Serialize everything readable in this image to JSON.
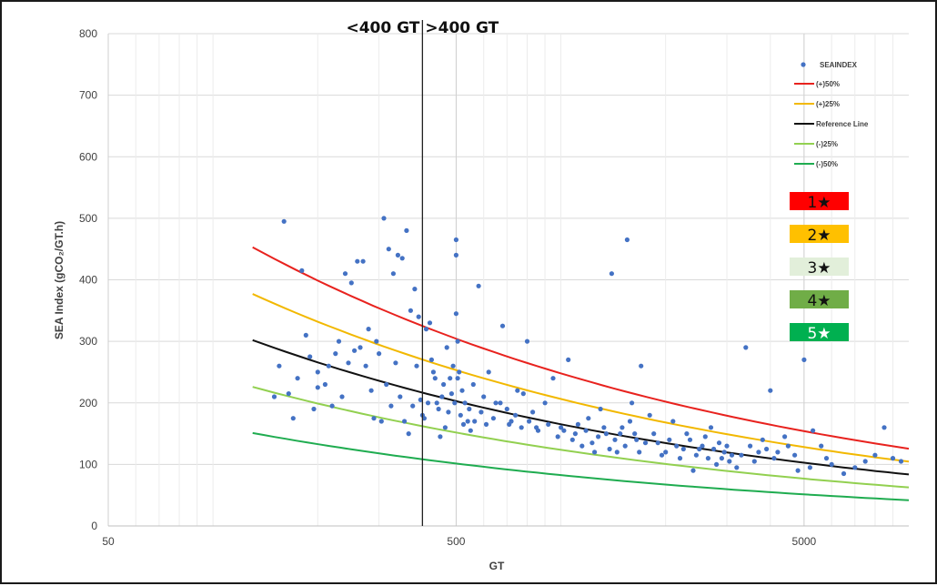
{
  "chart_data": {
    "type": "scatter",
    "title": "",
    "xlabel": "GT",
    "ylabel": "SEA Index (gCO₂/GT.h)",
    "x_scale": "log",
    "xlim": [
      50,
      10000
    ],
    "ylim": [
      0,
      800
    ],
    "x_ticks": [
      50,
      500,
      5000
    ],
    "x_tick_labels": [
      "50",
      "500",
      "5000"
    ],
    "y_ticks": [
      0,
      100,
      200,
      300,
      400,
      500,
      600,
      700,
      800
    ],
    "y_tick_labels": [
      "0",
      "100",
      "200",
      "300",
      "400",
      "500",
      "600",
      "700",
      "800"
    ],
    "grid": true,
    "legend_position": "top-right",
    "threshold_line": {
      "x": 400
    },
    "annotations": [
      "<400 GT",
      ">400 GT"
    ],
    "scatter_series": {
      "name": "SEAINDEX",
      "color": "#4472c4",
      "points": [
        [
          160,
          495
        ],
        [
          150,
          210
        ],
        [
          155,
          260
        ],
        [
          165,
          215
        ],
        [
          170,
          175
        ],
        [
          175,
          240
        ],
        [
          180,
          415
        ],
        [
          185,
          310
        ],
        [
          190,
          275
        ],
        [
          195,
          190
        ],
        [
          200,
          250
        ],
        [
          210,
          230
        ],
        [
          220,
          195
        ],
        [
          230,
          300
        ],
        [
          240,
          410
        ],
        [
          250,
          395
        ],
        [
          255,
          285
        ],
        [
          260,
          430
        ],
        [
          270,
          430
        ],
        [
          280,
          320
        ],
        [
          290,
          175
        ],
        [
          300,
          280
        ],
        [
          305,
          170
        ],
        [
          310,
          500
        ],
        [
          320,
          450
        ],
        [
          330,
          410
        ],
        [
          340,
          440
        ],
        [
          350,
          435
        ],
        [
          360,
          480
        ],
        [
          370,
          350
        ],
        [
          380,
          385
        ],
        [
          390,
          340
        ],
        [
          400,
          180
        ],
        [
          410,
          320
        ],
        [
          420,
          330
        ],
        [
          430,
          250
        ],
        [
          440,
          200
        ],
        [
          450,
          145
        ],
        [
          460,
          230
        ],
        [
          470,
          290
        ],
        [
          480,
          240
        ],
        [
          490,
          260
        ],
        [
          500,
          465
        ],
        [
          500,
          440
        ],
        [
          500,
          345
        ],
        [
          505,
          300
        ],
        [
          510,
          250
        ],
        [
          520,
          220
        ],
        [
          530,
          200
        ],
        [
          540,
          170
        ],
        [
          550,
          155
        ],
        [
          560,
          230
        ],
        [
          580,
          390
        ],
        [
          600,
          210
        ],
        [
          620,
          250
        ],
        [
          650,
          200
        ],
        [
          680,
          325
        ],
        [
          700,
          190
        ],
        [
          720,
          170
        ],
        [
          750,
          220
        ],
        [
          780,
          215
        ],
        [
          800,
          300
        ],
        [
          830,
          185
        ],
        [
          850,
          160
        ],
        [
          900,
          200
        ],
        [
          950,
          240
        ],
        [
          1000,
          160
        ],
        [
          1050,
          270
        ],
        [
          1100,
          150
        ],
        [
          1150,
          130
        ],
        [
          1200,
          175
        ],
        [
          1250,
          120
        ],
        [
          1300,
          190
        ],
        [
          1350,
          150
        ],
        [
          1400,
          410
        ],
        [
          1450,
          120
        ],
        [
          1500,
          160
        ],
        [
          1550,
          465
        ],
        [
          1600,
          200
        ],
        [
          1650,
          140
        ],
        [
          1700,
          260
        ],
        [
          1800,
          180
        ],
        [
          1900,
          135
        ],
        [
          2000,
          120
        ],
        [
          2100,
          170
        ],
        [
          2200,
          110
        ],
        [
          2300,
          150
        ],
        [
          2400,
          90
        ],
        [
          2500,
          125
        ],
        [
          2600,
          145
        ],
        [
          2700,
          160
        ],
        [
          2800,
          100
        ],
        [
          2900,
          110
        ],
        [
          3000,
          130
        ],
        [
          3100,
          115
        ],
        [
          3200,
          95
        ],
        [
          3400,
          290
        ],
        [
          3600,
          105
        ],
        [
          3800,
          140
        ],
        [
          4000,
          220
        ],
        [
          4200,
          120
        ],
        [
          4500,
          130
        ],
        [
          4800,
          90
        ],
        [
          5000,
          270
        ],
        [
          5300,
          155
        ],
        [
          5600,
          130
        ],
        [
          6000,
          100
        ],
        [
          6500,
          85
        ],
        [
          7000,
          95
        ],
        [
          7500,
          105
        ],
        [
          8000,
          115
        ],
        [
          8500,
          160
        ],
        [
          9000,
          110
        ],
        [
          9500,
          105
        ],
        [
          200,
          225
        ],
        [
          215,
          260
        ],
        [
          225,
          280
        ],
        [
          235,
          210
        ],
        [
          245,
          265
        ],
        [
          265,
          290
        ],
        [
          275,
          260
        ],
        [
          285,
          220
        ],
        [
          295,
          300
        ],
        [
          315,
          230
        ],
        [
          325,
          195
        ],
        [
          335,
          265
        ],
        [
          345,
          210
        ],
        [
          355,
          170
        ],
        [
          365,
          150
        ],
        [
          375,
          195
        ],
        [
          385,
          260
        ],
        [
          395,
          205
        ],
        [
          405,
          175
        ],
        [
          415,
          200
        ],
        [
          425,
          270
        ],
        [
          435,
          240
        ],
        [
          445,
          190
        ],
        [
          455,
          210
        ],
        [
          465,
          160
        ],
        [
          475,
          185
        ],
        [
          485,
          215
        ],
        [
          495,
          200
        ],
        [
          505,
          240
        ],
        [
          515,
          180
        ],
        [
          525,
          165
        ],
        [
          545,
          190
        ],
        [
          565,
          170
        ],
        [
          590,
          185
        ],
        [
          610,
          165
        ],
        [
          640,
          175
        ],
        [
          670,
          200
        ],
        [
          710,
          165
        ],
        [
          740,
          180
        ],
        [
          770,
          160
        ],
        [
          810,
          170
        ],
        [
          860,
          155
        ],
        [
          920,
          165
        ],
        [
          980,
          145
        ],
        [
          1020,
          155
        ],
        [
          1080,
          140
        ],
        [
          1120,
          165
        ],
        [
          1180,
          155
        ],
        [
          1230,
          135
        ],
        [
          1280,
          145
        ],
        [
          1330,
          160
        ],
        [
          1380,
          125
        ],
        [
          1430,
          140
        ],
        [
          1480,
          150
        ],
        [
          1530,
          130
        ],
        [
          1580,
          170
        ],
        [
          1630,
          150
        ],
        [
          1680,
          120
        ],
        [
          1750,
          135
        ],
        [
          1850,
          150
        ],
        [
          1950,
          115
        ],
        [
          2050,
          140
        ],
        [
          2150,
          130
        ],
        [
          2250,
          125
        ],
        [
          2350,
          140
        ],
        [
          2450,
          115
        ],
        [
          2550,
          130
        ],
        [
          2650,
          110
        ],
        [
          2750,
          125
        ],
        [
          2850,
          135
        ],
        [
          2950,
          120
        ],
        [
          3050,
          105
        ],
        [
          3300,
          115
        ],
        [
          3500,
          130
        ],
        [
          3700,
          120
        ],
        [
          3900,
          125
        ],
        [
          4100,
          110
        ],
        [
          4400,
          145
        ],
        [
          4700,
          115
        ],
        [
          5200,
          95
        ],
        [
          5800,
          110
        ]
      ]
    },
    "curves": [
      {
        "name": "(+)50%",
        "color": "#e8221e",
        "x": [
          130,
          10000
        ],
        "y": [
          453,
          125
        ]
      },
      {
        "name": "(+)25%",
        "color": "#f2b800",
        "x": [
          130,
          10000
        ],
        "y": [
          377,
          105
        ]
      },
      {
        "name": "Reference Line",
        "color": "#111111",
        "x": [
          130,
          10000
        ],
        "y": [
          302,
          85
        ]
      },
      {
        "name": "(-)25%",
        "color": "#92d050",
        "x": [
          130,
          10000
        ],
        "y": [
          226,
          63
        ]
      },
      {
        "name": "(-)50%",
        "color": "#1fac50",
        "x": [
          130,
          10000
        ],
        "y": [
          151,
          42
        ]
      }
    ],
    "ratings": [
      {
        "label": "1★",
        "color": "#ff0000",
        "text_color": "#111111"
      },
      {
        "label": "2★",
        "color": "#ffc000",
        "text_color": "#111111"
      },
      {
        "label": "3★",
        "color": "#e2efda",
        "text_color": "#111111"
      },
      {
        "label": "4★",
        "color": "#70ad47",
        "text_color": "#111111"
      },
      {
        "label": "5★",
        "color": "#00b050",
        "text_color": "#ffffff"
      }
    ]
  }
}
